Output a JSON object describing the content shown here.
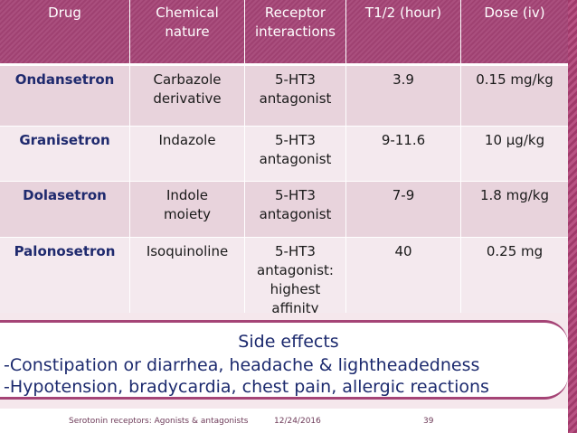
{
  "table": {
    "headers": [
      [
        "Drug"
      ],
      [
        "Chemical",
        "nature"
      ],
      [
        "Receptor",
        "interactions"
      ],
      [
        "T1/2 (hour)"
      ],
      [
        "Dose (iv)"
      ]
    ],
    "rows": [
      {
        "drug": "Ondansetron",
        "nature": [
          "Carbazole",
          "derivative"
        ],
        "interaction": [
          "5-HT3",
          "antagonist"
        ],
        "half_life": "3.9",
        "dose": "0.15 mg/kg"
      },
      {
        "drug": "Granisetron",
        "nature": [
          "Indazole"
        ],
        "interaction": [
          "5-HT3",
          "antagonist"
        ],
        "half_life": "9-11.6",
        "dose": "10 μg/kg"
      },
      {
        "drug": "Dolasetron",
        "nature": [
          "Indole",
          "moiety"
        ],
        "interaction": [
          "5-HT3",
          "antagonist"
        ],
        "half_life": "7-9",
        "dose": "1.8 mg/kg"
      },
      {
        "drug": "Palonosetron",
        "nature": [
          "Isoquinoline"
        ],
        "interaction": [
          "5-HT3",
          "antagonist:",
          "highest",
          "affinity"
        ],
        "half_life": "40",
        "dose": "0.25 mg"
      }
    ]
  },
  "side_effects": {
    "title": "Side effects",
    "lines": [
      "-Constipation or diarrhea, headache & lightheadedness",
      "-Hypotension, bradycardia, chest pain, allergic reactions"
    ]
  },
  "footer": {
    "title": "Serotonin receptors: Agonists & antagonists",
    "date": "12/24/2016",
    "page": "39"
  },
  "colors": {
    "header_bg": "#a54476",
    "row_odd": "#e8d3dc",
    "row_even": "#f4e9ee",
    "drug_name": "#1f2a6e",
    "side_text": "#1c2a6e"
  }
}
